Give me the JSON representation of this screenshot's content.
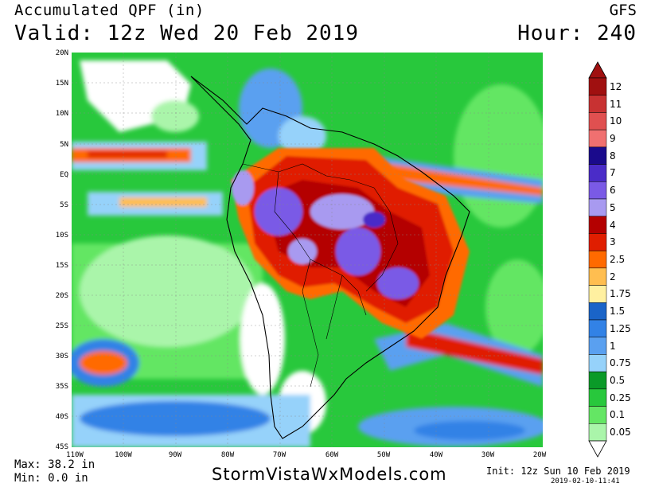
{
  "header": {
    "product": "Accumulated QPF (in)",
    "valid": "Valid: 12z Wed 20 Feb 2019",
    "model": "GFS",
    "hour": "Hour: 240"
  },
  "footer": {
    "max": "Max: 38.2 in",
    "min": "Min: 0.0 in",
    "brand": "StormVistaWxModels.com",
    "init": "Init: 12z Sun 10 Feb 2019",
    "stamp": "2019-02-10-11:41"
  },
  "map": {
    "lat_labels": [
      "20N",
      "15N",
      "10N",
      "5N",
      "EQ",
      "5S",
      "10S",
      "15S",
      "20S",
      "25S",
      "30S",
      "35S",
      "40S",
      "45S"
    ],
    "lon_labels": [
      "110W",
      "100W",
      "90W",
      "80W",
      "70W",
      "60W",
      "50W",
      "40W",
      "30W",
      "20W"
    ]
  },
  "colorbar": {
    "levels": [
      "12",
      "11",
      "10",
      "9",
      "8",
      "7",
      "6",
      "5",
      "4",
      "3",
      "2.5",
      "2",
      "1.75",
      "1.5",
      "1.25",
      "1",
      "0.75",
      "0.5",
      "0.25",
      "0.1",
      "0.05"
    ],
    "colors": [
      "#a01010",
      "#c83232",
      "#e05050",
      "#f07070",
      "#1a0a8c",
      "#4a2cc8",
      "#7a5ae6",
      "#a89af0",
      "#b40000",
      "#e01e00",
      "#ff6a00",
      "#ffbe50",
      "#fff0a0",
      "#1a64c8",
      "#3282e6",
      "#5aa0f0",
      "#96d2fa",
      "#0a9a28",
      "#28c83c",
      "#64e664",
      "#aaf5aa"
    ]
  }
}
